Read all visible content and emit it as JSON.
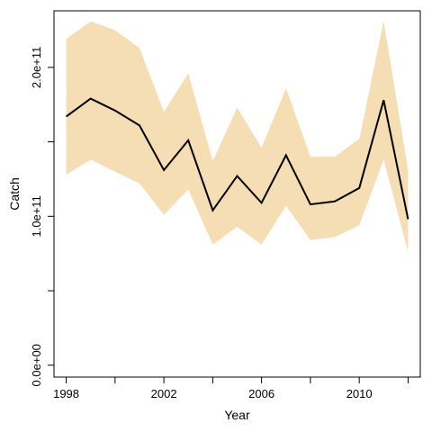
{
  "chart_data": {
    "type": "area",
    "title": "",
    "xlabel": "Year",
    "ylabel": "Catch",
    "xlim": [
      1997.5,
      2012.5
    ],
    "ylim": [
      -8000000000,
      238000000000
    ],
    "x_ticks": [
      1998,
      2000,
      2002,
      2004,
      2006,
      2008,
      2010,
      2012
    ],
    "x_tick_labels": [
      "1998",
      "",
      "2002",
      "",
      "2006",
      "",
      "2010",
      ""
    ],
    "y_ticks": [
      0,
      50000000000,
      100000000000,
      150000000000,
      200000000000
    ],
    "y_tick_labels": [
      "0.0e+00",
      "",
      "1.0e+11",
      "",
      "2.0e+11"
    ],
    "grid": false,
    "legend": "none",
    "x": [
      1998,
      1999,
      2000,
      2001,
      2002,
      2003,
      2004,
      2005,
      2006,
      2007,
      2008,
      2009,
      2010,
      2011,
      2012
    ],
    "series": [
      {
        "values": [
          167000000000,
          179000000000,
          171000000000,
          161000000000,
          131000000000,
          151000000000,
          104000000000,
          127000000000,
          109000000000,
          141000000000,
          108000000000,
          110000000000,
          119000000000,
          178000000000,
          98000000000
        ],
        "color": "#000000"
      }
    ],
    "band": {
      "upper": [
        219000000000,
        231000000000,
        225000000000,
        213000000000,
        170000000000,
        196000000000,
        137000000000,
        173000000000,
        146000000000,
        186000000000,
        140000000000,
        140000000000,
        152000000000,
        231000000000,
        131000000000
      ],
      "lower": [
        128000000000,
        138000000000,
        130000000000,
        122000000000,
        101000000000,
        118000000000,
        81000000000,
        93000000000,
        81000000000,
        107000000000,
        84000000000,
        86000000000,
        94000000000,
        138000000000,
        76000000000
      ],
      "color": "#F5DEB3"
    }
  }
}
